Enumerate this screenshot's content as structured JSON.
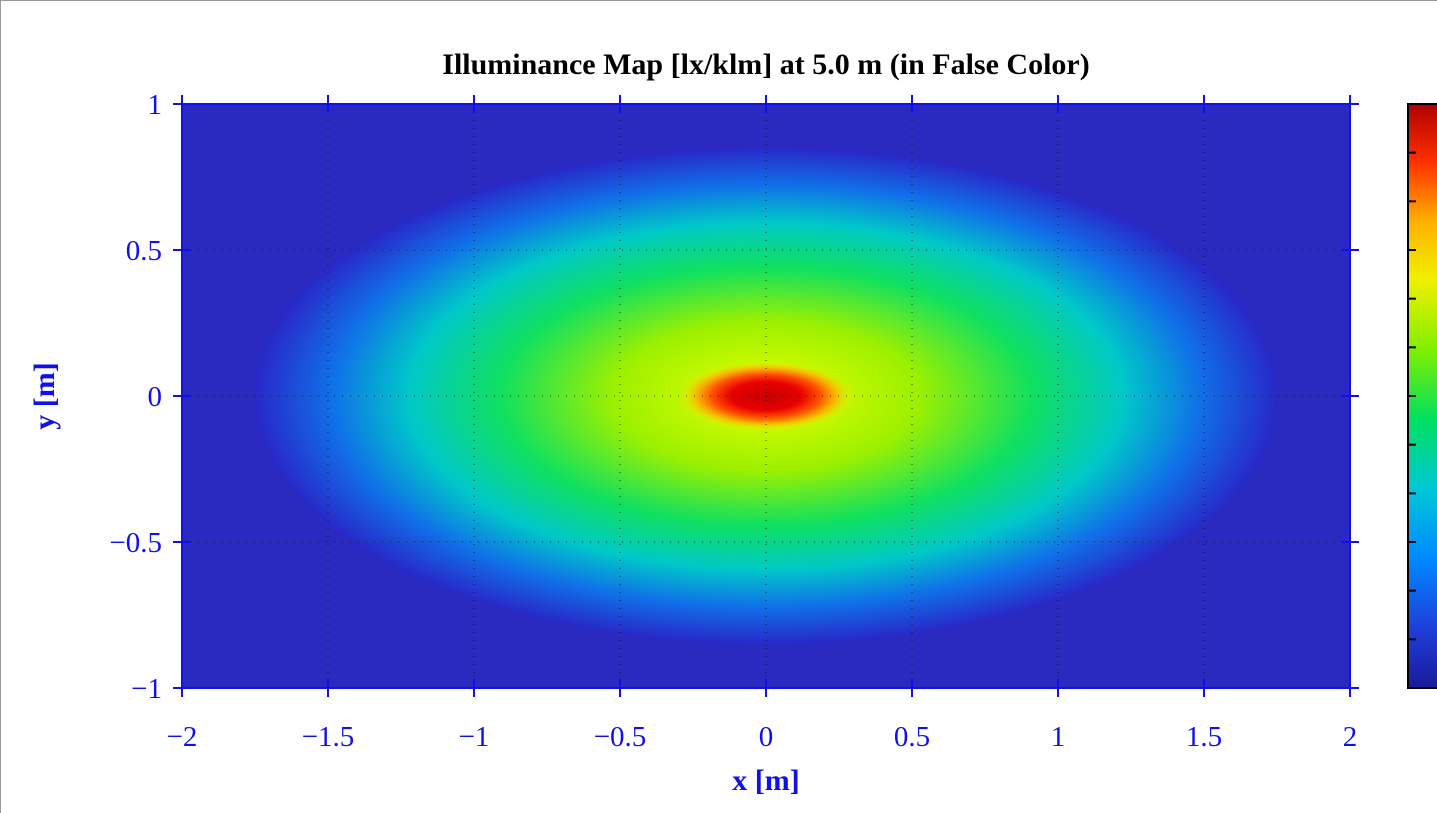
{
  "chart_data": {
    "type": "heatmap",
    "title": "Illuminance Map [lx/klm] at 5.0 m (in False Color)",
    "xlabel": "x [m]",
    "ylabel": "y [m]",
    "xlim": [
      -2,
      2
    ],
    "ylim": [
      -1,
      1
    ],
    "xticks": [
      -2,
      -1.5,
      -1,
      -0.5,
      0,
      0.5,
      1,
      1.5,
      2
    ],
    "yticks": [
      -1,
      -0.5,
      0,
      0.5,
      1
    ],
    "xtick_labels": [
      "−2",
      "−1.5",
      "−1",
      "−0.5",
      "0",
      "0.5",
      "1",
      "1.5",
      "2"
    ],
    "ytick_labels": [
      "−1",
      "−0.5",
      "0",
      "0.5",
      "1"
    ],
    "grid": true,
    "colormap": "jet",
    "colorbar": {
      "tick_count": 12,
      "labels_visible": false
    },
    "peak": {
      "x": 0.0,
      "y": 0.0
    },
    "peak_half_widths": {
      "x": 0.3,
      "y": 0.12
    },
    "falloff_half_widths": {
      "x": 1.75,
      "y": 0.85
    }
  }
}
